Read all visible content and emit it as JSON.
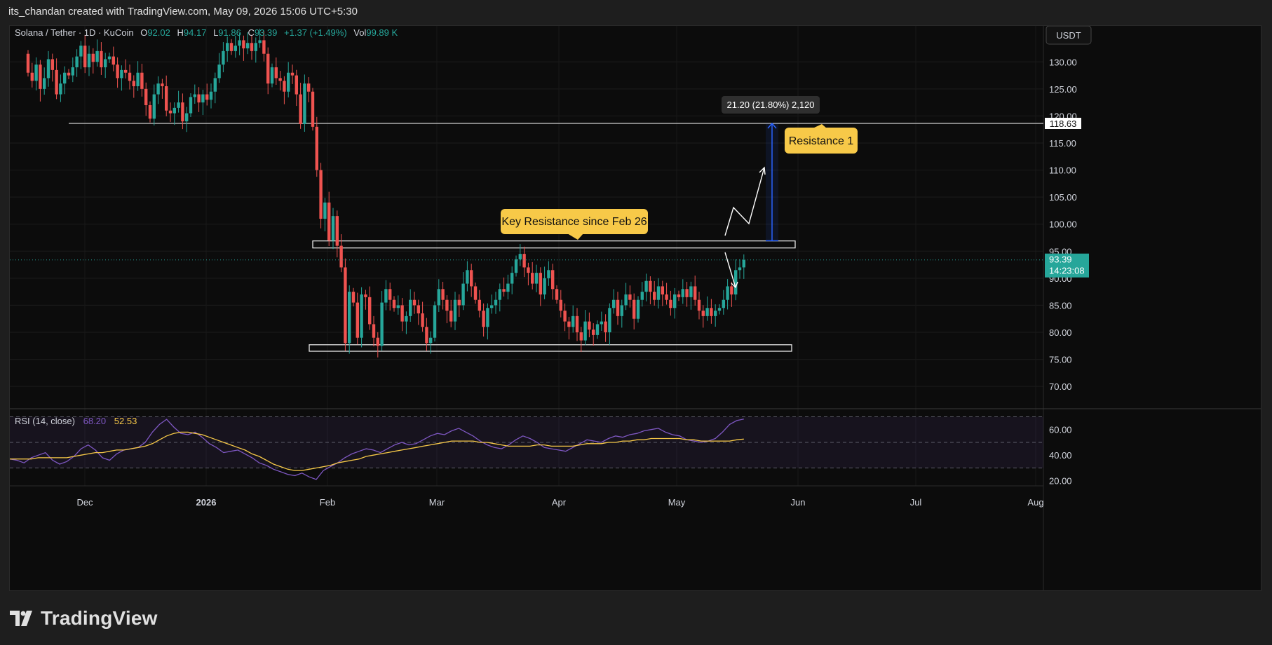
{
  "header": {
    "title": "its_chandan created with TradingView.com, May 09, 2026 15:06 UTC+5:30"
  },
  "footer": {
    "brand": "TradingView"
  },
  "colors": {
    "up": "#26a69a",
    "down": "#ef5350",
    "rsi": "#7e57c2",
    "rsi_ma": "#f7c948",
    "bg": "#0c0c0c",
    "annotation": "#f7c948",
    "measure": "#2962ff"
  },
  "legend": {
    "symbol": "Solana / Tether · 1D · KuCoin",
    "o_label": "O",
    "o_value": "92.02",
    "h_label": "H",
    "h_value": "94.17",
    "l_label": "L",
    "l_value": "91.86",
    "c_label": "C",
    "c_value": "93.39",
    "change": "+1.37 (+1.49%)",
    "vol_label": "Vol",
    "vol_value": "99.89 K"
  },
  "price_scale": {
    "currency": "USDT",
    "current_price": "93.39",
    "countdown": "14:23:08",
    "level_tag": "118.63"
  },
  "annotations": {
    "resistance_1": "Resistance 1",
    "key_resistance": "Key Resistance since Feb 26",
    "measure": "21.20 (21.80%) 2,120"
  },
  "rsi_legend": {
    "label": "RSI (14, close)",
    "value": "68.20",
    "ma_value": "52.53"
  },
  "chart_data": {
    "type": "candlestick",
    "price_ticks": [
      "130.00",
      "125.00",
      "120.00",
      "115.00",
      "110.00",
      "105.00",
      "100.00",
      "95.00",
      "90.00",
      "85.00",
      "80.00",
      "75.00",
      "70.00"
    ],
    "ylim": [
      66,
      136
    ],
    "x_ticks": [
      "Dec",
      "2026",
      "Feb",
      "Mar",
      "Apr",
      "May",
      "Jun",
      "Jul",
      "Aug"
    ],
    "resistance_level": 118.63,
    "key_resistance_zone": [
      95.6,
      96.9
    ],
    "support_zone": [
      76.5,
      77.7
    ],
    "candles": [
      [
        131.5,
        128.0
      ],
      [
        128.0,
        126.5
      ],
      [
        126.5,
        129.5
      ],
      [
        129.5,
        125.0
      ],
      [
        125.0,
        127.0
      ],
      [
        127.0,
        130.5
      ],
      [
        130.5,
        128.5
      ],
      [
        128.5,
        124.0
      ],
      [
        124.0,
        126.0
      ],
      [
        126.0,
        128.0
      ],
      [
        128.0,
        127.5
      ],
      [
        127.5,
        129.0
      ],
      [
        129.0,
        131.0
      ],
      [
        131.0,
        133.0
      ],
      [
        133.0,
        129.0
      ],
      [
        129.0,
        131.5
      ],
      [
        131.5,
        130.0
      ],
      [
        130.0,
        132.0
      ],
      [
        132.0,
        129.0
      ],
      [
        129.0,
        130.5
      ],
      [
        130.5,
        131.0
      ],
      [
        131.0,
        129.5
      ],
      [
        129.5,
        127.0
      ],
      [
        127.0,
        128.5
      ],
      [
        128.5,
        128.0
      ],
      [
        128.0,
        126.5
      ],
      [
        126.5,
        125.5
      ],
      [
        125.5,
        128.0
      ],
      [
        128.0,
        125.0
      ],
      [
        125.0,
        122.0
      ],
      [
        122.0,
        119.5
      ],
      [
        119.5,
        124.0
      ],
      [
        124.0,
        126.0
      ],
      [
        126.0,
        125.5
      ],
      [
        125.5,
        121.0
      ],
      [
        121.0,
        120.5
      ],
      [
        120.5,
        121.5
      ],
      [
        121.5,
        122.5
      ],
      [
        122.5,
        119.0
      ],
      [
        119.0,
        120.5
      ],
      [
        120.5,
        123.5
      ],
      [
        123.5,
        124.0
      ],
      [
        124.0,
        122.5
      ],
      [
        122.5,
        124.0
      ],
      [
        124.0,
        123.0
      ],
      [
        123.0,
        124.5
      ],
      [
        124.5,
        127.0
      ],
      [
        127.0,
        129.5
      ],
      [
        129.5,
        132.0
      ],
      [
        132.0,
        133.5
      ],
      [
        133.5,
        132.0
      ],
      [
        132.0,
        133.0
      ],
      [
        133.0,
        134.0
      ],
      [
        134.0,
        132.5
      ],
      [
        132.5,
        133.5
      ],
      [
        133.5,
        132.0
      ],
      [
        132.0,
        133.5
      ],
      [
        133.5,
        134.0
      ],
      [
        134.0,
        131.5
      ],
      [
        131.5,
        126.0
      ],
      [
        126.0,
        129.0
      ],
      [
        129.0,
        127.0
      ],
      [
        127.0,
        126.5
      ],
      [
        126.5,
        124.5
      ],
      [
        124.5,
        128.0
      ],
      [
        128.0,
        127.5
      ],
      [
        127.5,
        124.0
      ],
      [
        124.0,
        118.5
      ],
      [
        118.5,
        126.0
      ],
      [
        126.0,
        124.5
      ],
      [
        124.5,
        118.0
      ],
      [
        118.0,
        110.0
      ],
      [
        110.0,
        101.0
      ],
      [
        101.0,
        104.0
      ],
      [
        104.0,
        97.0
      ],
      [
        97.0,
        101.5
      ],
      [
        101.5,
        96.0
      ],
      [
        96.0,
        92.0
      ],
      [
        92.0,
        78.0
      ],
      [
        78.0,
        87.5
      ],
      [
        87.5,
        85.5
      ],
      [
        85.5,
        79.0
      ],
      [
        79.0,
        87.0
      ],
      [
        87.0,
        86.5
      ],
      [
        86.5,
        81.5
      ],
      [
        81.5,
        79.0
      ],
      [
        79.0,
        77.5
      ],
      [
        77.5,
        85.5
      ],
      [
        85.5,
        88.0
      ],
      [
        88.0,
        86.0
      ],
      [
        86.0,
        84.5
      ],
      [
        84.5,
        85.0
      ],
      [
        85.0,
        82.0
      ],
      [
        82.0,
        83.0
      ],
      [
        83.0,
        86.0
      ],
      [
        86.0,
        85.0
      ],
      [
        85.0,
        83.5
      ],
      [
        83.5,
        81.0
      ],
      [
        81.0,
        78.0
      ],
      [
        78.0,
        79.0
      ],
      [
        79.0,
        85.0
      ],
      [
        85.0,
        88.0
      ],
      [
        88.0,
        86.0
      ],
      [
        86.0,
        84.0
      ],
      [
        84.0,
        82.0
      ],
      [
        82.0,
        86.0
      ],
      [
        86.0,
        85.0
      ],
      [
        85.0,
        89.0
      ],
      [
        89.0,
        91.5
      ],
      [
        91.5,
        88.5
      ],
      [
        88.5,
        86.0
      ],
      [
        86.0,
        84.0
      ],
      [
        84.0,
        81.0
      ],
      [
        81.0,
        84.5
      ],
      [
        84.5,
        85.0
      ],
      [
        85.0,
        86.0
      ],
      [
        86.0,
        88.0
      ],
      [
        88.0,
        87.5
      ],
      [
        87.5,
        89.0
      ],
      [
        89.0,
        91.0
      ],
      [
        91.0,
        93.5
      ],
      [
        93.5,
        94.5
      ],
      [
        94.5,
        92.0
      ],
      [
        92.0,
        91.0
      ],
      [
        91.0,
        89.0
      ],
      [
        89.0,
        91.0
      ],
      [
        91.0,
        87.0
      ],
      [
        87.0,
        90.0
      ],
      [
        90.0,
        91.5
      ],
      [
        91.5,
        88.0
      ],
      [
        88.0,
        86.0
      ],
      [
        86.0,
        84.0
      ],
      [
        84.0,
        82.0
      ],
      [
        82.0,
        81.0
      ],
      [
        81.0,
        83.0
      ],
      [
        83.0,
        80.0
      ],
      [
        80.0,
        78.5
      ],
      [
        78.5,
        82.0
      ],
      [
        82.0,
        80.5
      ],
      [
        80.5,
        79.5
      ],
      [
        79.5,
        81.5
      ],
      [
        81.5,
        82.0
      ],
      [
        82.0,
        80.0
      ],
      [
        80.0,
        84.5
      ],
      [
        84.5,
        86.0
      ],
      [
        86.0,
        83.0
      ],
      [
        83.0,
        85.0
      ],
      [
        85.0,
        87.0
      ],
      [
        87.0,
        86.0
      ],
      [
        86.0,
        82.5
      ],
      [
        82.5,
        86.0
      ],
      [
        86.0,
        87.5
      ],
      [
        87.5,
        89.5
      ],
      [
        89.5,
        87.5
      ],
      [
        87.5,
        86.0
      ],
      [
        86.0,
        88.5
      ],
      [
        88.5,
        87.0
      ],
      [
        87.0,
        86.0
      ],
      [
        86.0,
        84.5
      ],
      [
        84.5,
        87.0
      ],
      [
        87.0,
        86.5
      ],
      [
        86.5,
        88.0
      ],
      [
        88.0,
        86.5
      ],
      [
        86.5,
        88.5
      ],
      [
        88.5,
        86.0
      ],
      [
        86.0,
        84.0
      ],
      [
        84.0,
        83.0
      ],
      [
        83.0,
        84.5
      ],
      [
        84.5,
        83.0
      ],
      [
        83.0,
        84.0
      ],
      [
        84.0,
        84.5
      ],
      [
        84.5,
        86.0
      ],
      [
        86.0,
        88.5
      ],
      [
        88.5,
        87.0
      ],
      [
        87.0,
        91.5
      ],
      [
        91.5,
        92.0
      ],
      [
        92.0,
        93.39
      ]
    ],
    "rsi": [
      37,
      36,
      34,
      38,
      40,
      42,
      36,
      33,
      35,
      39,
      45,
      48,
      44,
      38,
      36,
      41,
      44,
      45,
      46,
      50,
      58,
      64,
      68,
      62,
      57,
      56,
      58,
      54,
      49,
      46,
      42,
      43,
      44,
      41,
      38,
      34,
      32,
      29,
      27,
      25,
      24,
      26,
      23,
      21,
      28,
      31,
      34,
      38,
      41,
      43,
      45,
      44,
      42,
      45,
      48,
      50,
      48,
      49,
      52,
      55,
      57,
      56,
      59,
      61,
      58,
      55,
      51,
      48,
      46,
      45,
      48,
      52,
      55,
      53,
      50,
      46,
      45,
      44,
      43,
      46,
      49,
      52,
      51,
      50,
      53,
      55,
      54,
      56,
      57,
      59,
      60,
      61,
      58,
      56,
      55,
      52,
      51,
      50,
      51,
      53,
      58,
      64,
      67,
      68.2
    ],
    "rsi_ma": [
      37,
      37,
      37,
      37,
      38,
      38,
      38,
      38,
      38,
      39,
      40,
      41,
      42,
      42,
      43,
      44,
      44,
      45,
      46,
      47,
      49,
      52,
      55,
      57,
      58,
      58,
      57,
      56,
      54,
      52,
      50,
      48,
      46,
      44,
      41,
      39,
      36,
      33,
      31,
      29,
      28,
      28,
      29,
      30,
      31,
      32,
      34,
      35,
      36,
      37,
      39,
      40,
      41,
      42,
      43,
      44,
      45,
      46,
      47,
      48,
      49,
      50,
      51,
      51,
      51,
      51,
      50,
      50,
      49,
      48,
      47,
      47,
      47,
      47,
      48,
      48,
      47,
      47,
      47,
      47,
      48,
      49,
      49,
      49,
      50,
      50,
      51,
      51,
      52,
      52,
      53,
      53,
      53,
      53,
      53,
      52,
      52,
      51,
      51,
      51,
      51,
      51,
      52,
      52.53
    ],
    "rsi_ticks": [
      "60.00",
      "40.00",
      "20.00"
    ],
    "rsi_levels": [
      70,
      50,
      30
    ],
    "rsi_ylim": [
      16,
      73
    ]
  }
}
